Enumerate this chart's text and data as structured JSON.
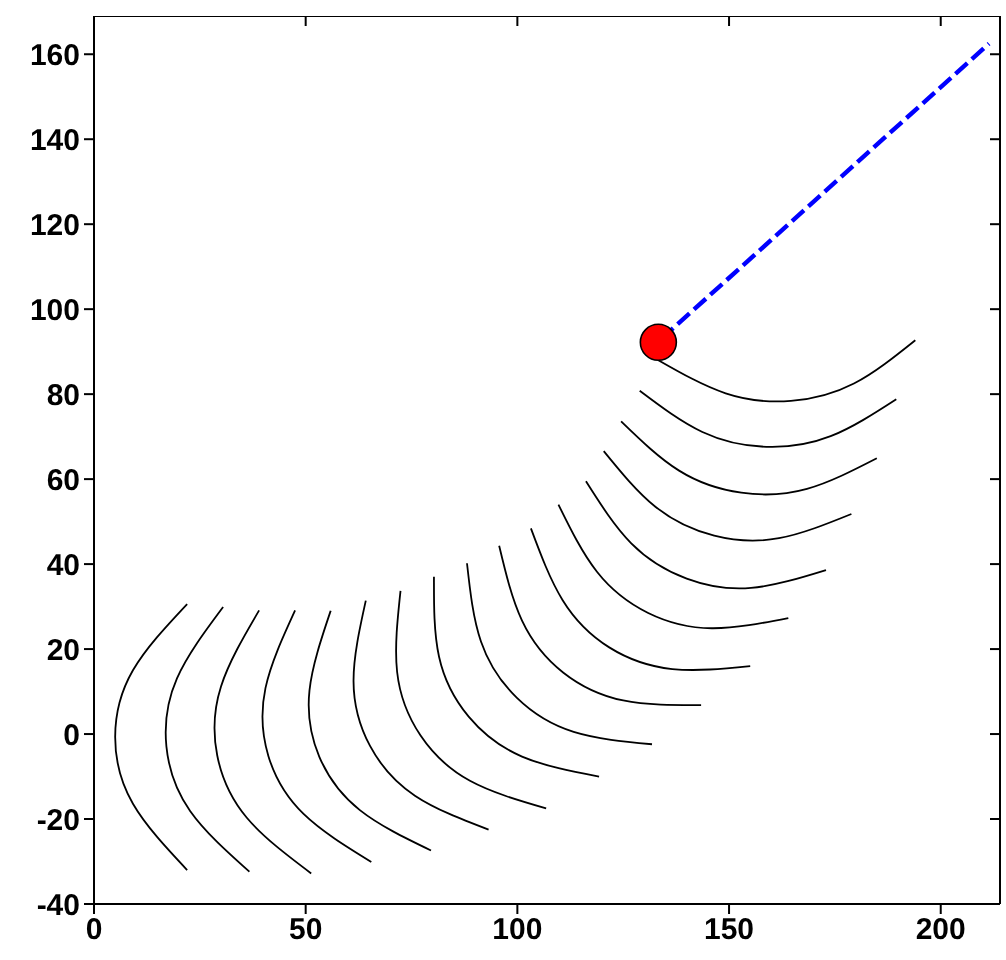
{
  "chart_data": {
    "type": "line",
    "xlim": [
      0,
      214
    ],
    "ylim": [
      -40,
      169
    ],
    "xticks": [
      0,
      50,
      100,
      150,
      200
    ],
    "yticks": [
      -40,
      -20,
      0,
      20,
      40,
      60,
      80,
      100,
      120,
      140,
      160
    ],
    "marker": "none",
    "line_style": "solid",
    "series": [
      {
        "color": "#000000",
        "x": [
          22.0,
          9.2,
          5.0,
          9.2,
          22.0
        ],
        "values": [
          30.6,
          15.0,
          -0.7,
          -16.4,
          -32
        ]
      },
      {
        "color": "#000000",
        "x": [
          30.5,
          19.6,
          17.1,
          22.7,
          36.7
        ],
        "values": [
          29.9,
          13.1,
          -2.9,
          -18.1,
          -32.4
        ]
      },
      {
        "color": "#000000",
        "x": [
          39.0,
          30.0,
          29.1,
          36.1,
          51.3
        ],
        "values": [
          29.1,
          11.2,
          -5.0,
          -19.7,
          -32.8
        ]
      },
      {
        "color": "#000000",
        "x": [
          47.5,
          40.5,
          41.2,
          49.5,
          65.5
        ],
        "values": [
          29.1,
          10.8,
          -5.2,
          -18.8,
          -30.1
        ]
      },
      {
        "color": "#000000",
        "x": [
          55.9,
          50.9,
          53.2,
          62.8,
          79.6
        ],
        "values": [
          29.0,
          10.3,
          -5.3,
          -17.9,
          -27.4
        ]
      },
      {
        "color": "#000000",
        "x": [
          64.2,
          61.3,
          65.2,
          75.8,
          93.2
        ],
        "values": [
          31.4,
          12.5,
          -2.8,
          -14.5,
          -22.5
        ]
      },
      {
        "color": "#000000",
        "x": [
          72.4,
          71.6,
          77.1,
          88.8,
          106.8
        ],
        "values": [
          33.7,
          14.6,
          -0.3,
          -11.0,
          -17.5
        ]
      },
      {
        "color": "#000000",
        "x": [
          80.3,
          81.5,
          88.5,
          101.1,
          119.3
        ],
        "values": [
          37.0,
          18.2,
          4.1,
          -5.3,
          -10.0
        ]
      },
      {
        "color": "#000000",
        "x": [
          88.1,
          91.4,
          99.9,
          113.3,
          131.8
        ],
        "values": [
          40.2,
          21.8,
          8.5,
          0.5,
          -2.4
        ]
      },
      {
        "color": "#000000",
        "x": [
          95.7,
          101.1,
          110.8,
          125.0,
          143.4
        ],
        "values": [
          44.3,
          26.7,
          14.5,
          7.9,
          6.8
        ]
      },
      {
        "color": "#000000",
        "x": [
          103.2,
          110.7,
          121.7,
          136.6,
          155.0
        ],
        "values": [
          48.4,
          31.5,
          20.4,
          15.3,
          16.0
        ]
      },
      {
        "color": "#000000",
        "x": [
          109.7,
          118.8,
          130.9,
          145.9,
          164.0
        ],
        "values": [
          54.0,
          38.2,
          28.5,
          24.9,
          27.3
        ]
      },
      {
        "color": "#000000",
        "x": [
          116.2,
          126.9,
          140.0,
          155.2,
          172.9
        ],
        "values": [
          59.5,
          44.9,
          36.6,
          34.4,
          38.6
        ]
      },
      {
        "color": "#000000",
        "x": [
          120.4,
          132.6,
          146.5,
          161.8,
          178.9
        ],
        "values": [
          66.6,
          53.5,
          46.7,
          46.1,
          51.8
        ]
      },
      {
        "color": "#000000",
        "x": [
          124.5,
          138.2,
          152.9,
          168.4,
          184.9
        ],
        "values": [
          73.6,
          62.0,
          56.8,
          57.7,
          64.9
        ]
      },
      {
        "color": "#000000",
        "x": [
          128.9,
          143.7,
          158.8,
          174.0,
          189.5
        ],
        "values": [
          80.8,
          71.1,
          67.6,
          70.1,
          78.8
        ]
      },
      {
        "color": "#000000",
        "x": [
          133.3,
          149.2,
          164.6,
          179.5,
          194.0
        ],
        "values": [
          88.0,
          80.2,
          78.4,
          82.5,
          92.7
        ]
      },
      {
        "color": "#0000ff",
        "line_style": "dashed",
        "x": [
          134,
          211.4
        ],
        "values": [
          93,
          162.5
        ]
      },
      {
        "type": "scatter",
        "color": "#ff0000",
        "marker": "circle",
        "x": [
          133.3
        ],
        "values": [
          92.2
        ]
      }
    ]
  }
}
